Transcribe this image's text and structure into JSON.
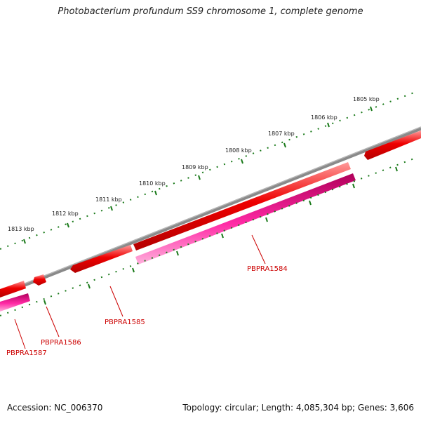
{
  "header": {
    "title": "Photobacterium profundum SS9 chromosome 1, complete genome"
  },
  "footer": {
    "accession": "Accession: NC_006370",
    "stats": "Topology: circular; Length: 4,085,304 bp; Genes: 3,606"
  },
  "kbp_ticks": [
    "1805 kbp",
    "1806 kbp",
    "1807 kbp",
    "1808 kbp",
    "1809 kbp",
    "1810 kbp",
    "1811 kbp",
    "1812 kbp",
    "1813 kbp"
  ],
  "genes": [
    {
      "label": "PBPRA1584"
    },
    {
      "label": "PBPRA1585"
    },
    {
      "label": "PBPRA1586"
    },
    {
      "label": "PBPRA1587"
    }
  ],
  "colors": {
    "forward_cds": "#ee0000",
    "reverse_cds": "#ff2aa5",
    "backbone": "#808080",
    "ticks": "#1a7a1a",
    "label": "#cc0000"
  }
}
